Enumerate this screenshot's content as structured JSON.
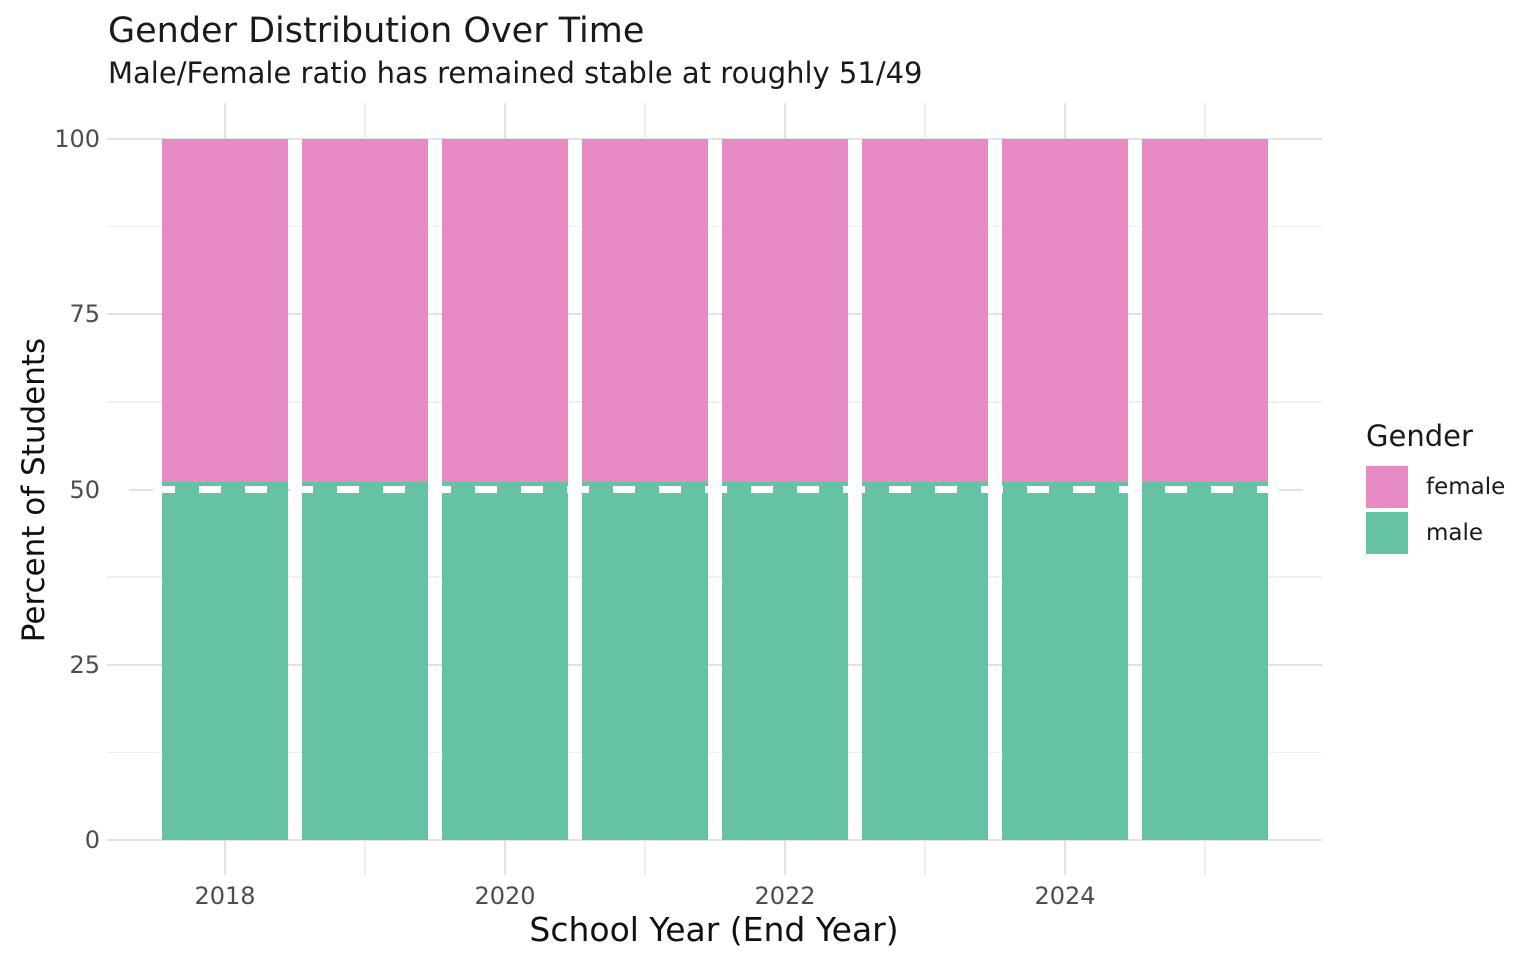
{
  "chart": {
    "title": "Gender Distribution Over Time",
    "subtitle": "Male/Female ratio has remained stable at roughly 51/49",
    "xlabel": "School Year (End Year)",
    "ylabel": "Percent of Students"
  },
  "chart_data": {
    "type": "bar",
    "stacked": true,
    "units": "percent",
    "title": "Gender Distribution Over Time",
    "subtitle": "Male/Female ratio has remained stable at roughly 51/49",
    "xlabel": "School Year (End Year)",
    "ylabel": "Percent of Students",
    "categories": [
      2018,
      2019,
      2020,
      2021,
      2022,
      2023,
      2024,
      2025
    ],
    "series": [
      {
        "name": "male",
        "color": "#66C2A5",
        "values": [
          51,
          51,
          51,
          51,
          51,
          51,
          51,
          51
        ]
      },
      {
        "name": "female",
        "color": "#E78AC3",
        "values": [
          49,
          49,
          49,
          49,
          49,
          49,
          49,
          49
        ]
      }
    ],
    "stack_order_bottom_to_top": [
      "male",
      "female"
    ],
    "ylim": [
      0,
      100
    ],
    "yticks": [
      0,
      25,
      50,
      75,
      100
    ],
    "yticks_minor": [
      12.5,
      37.5,
      62.5,
      87.5
    ],
    "xticks": [
      2018,
      2020,
      2022,
      2024
    ],
    "xticks_minor": [
      2019,
      2021,
      2023,
      2025
    ],
    "reference_line": {
      "y": 50,
      "style": "dashed",
      "color": "#FFFFFF"
    },
    "grid": true,
    "panel_background": "#FFFFFF",
    "legend": {
      "title": "Gender",
      "position": "right",
      "items": [
        {
          "label": "female",
          "color": "#E78AC3"
        },
        {
          "label": "male",
          "color": "#66C2A5"
        }
      ]
    }
  }
}
